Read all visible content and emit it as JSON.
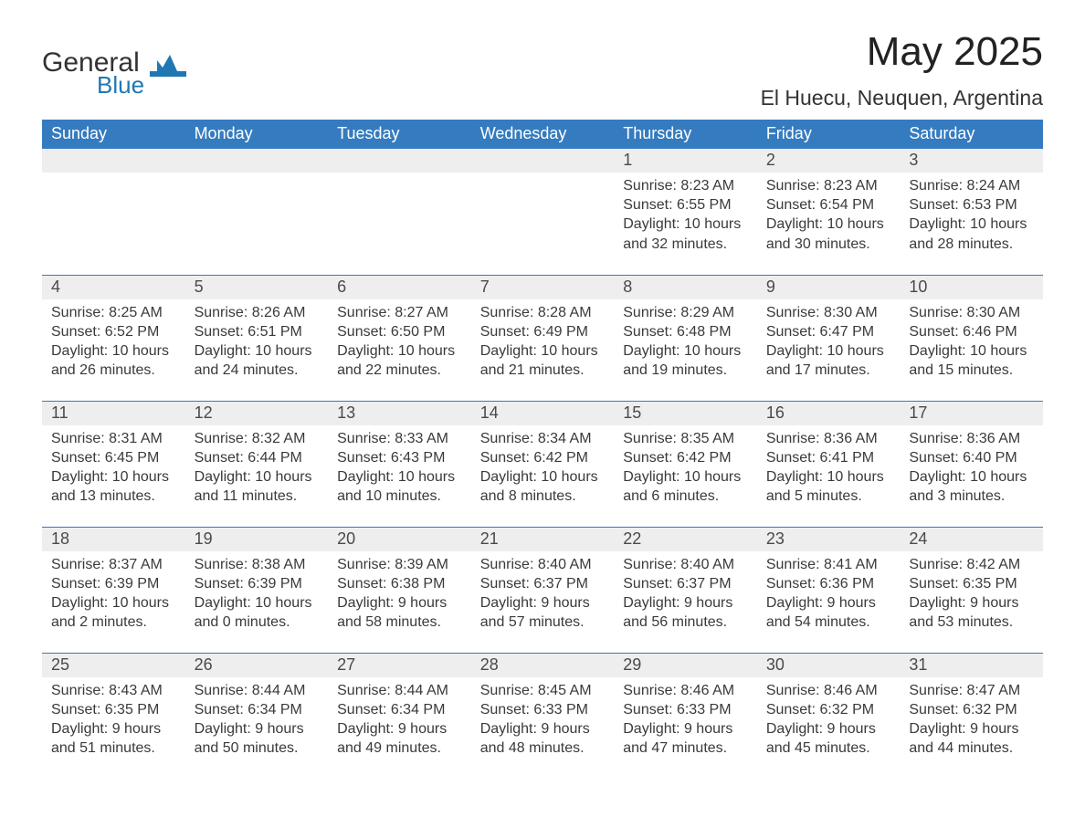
{
  "brand": {
    "word1": "General",
    "word2": "Blue",
    "accent": "#1f77b4"
  },
  "title": "May 2025",
  "location": "El Huecu, Neuquen, Argentina",
  "weekday_labels": [
    "Sunday",
    "Monday",
    "Tuesday",
    "Wednesday",
    "Thursday",
    "Friday",
    "Saturday"
  ],
  "colors": {
    "header_bg": "#357bbf",
    "header_text": "#ffffff",
    "daynum_bg": "#eeeeee",
    "row_border": "#357bbf",
    "body_text": "#3a3a3a"
  },
  "weeks": [
    [
      null,
      null,
      null,
      null,
      {
        "n": "1",
        "sunrise": "8:23 AM",
        "sunset": "6:55 PM",
        "dl": "10 hours and 32 minutes."
      },
      {
        "n": "2",
        "sunrise": "8:23 AM",
        "sunset": "6:54 PM",
        "dl": "10 hours and 30 minutes."
      },
      {
        "n": "3",
        "sunrise": "8:24 AM",
        "sunset": "6:53 PM",
        "dl": "10 hours and 28 minutes."
      }
    ],
    [
      {
        "n": "4",
        "sunrise": "8:25 AM",
        "sunset": "6:52 PM",
        "dl": "10 hours and 26 minutes."
      },
      {
        "n": "5",
        "sunrise": "8:26 AM",
        "sunset": "6:51 PM",
        "dl": "10 hours and 24 minutes."
      },
      {
        "n": "6",
        "sunrise": "8:27 AM",
        "sunset": "6:50 PM",
        "dl": "10 hours and 22 minutes."
      },
      {
        "n": "7",
        "sunrise": "8:28 AM",
        "sunset": "6:49 PM",
        "dl": "10 hours and 21 minutes."
      },
      {
        "n": "8",
        "sunrise": "8:29 AM",
        "sunset": "6:48 PM",
        "dl": "10 hours and 19 minutes."
      },
      {
        "n": "9",
        "sunrise": "8:30 AM",
        "sunset": "6:47 PM",
        "dl": "10 hours and 17 minutes."
      },
      {
        "n": "10",
        "sunrise": "8:30 AM",
        "sunset": "6:46 PM",
        "dl": "10 hours and 15 minutes."
      }
    ],
    [
      {
        "n": "11",
        "sunrise": "8:31 AM",
        "sunset": "6:45 PM",
        "dl": "10 hours and 13 minutes."
      },
      {
        "n": "12",
        "sunrise": "8:32 AM",
        "sunset": "6:44 PM",
        "dl": "10 hours and 11 minutes."
      },
      {
        "n": "13",
        "sunrise": "8:33 AM",
        "sunset": "6:43 PM",
        "dl": "10 hours and 10 minutes."
      },
      {
        "n": "14",
        "sunrise": "8:34 AM",
        "sunset": "6:42 PM",
        "dl": "10 hours and 8 minutes."
      },
      {
        "n": "15",
        "sunrise": "8:35 AM",
        "sunset": "6:42 PM",
        "dl": "10 hours and 6 minutes."
      },
      {
        "n": "16",
        "sunrise": "8:36 AM",
        "sunset": "6:41 PM",
        "dl": "10 hours and 5 minutes."
      },
      {
        "n": "17",
        "sunrise": "8:36 AM",
        "sunset": "6:40 PM",
        "dl": "10 hours and 3 minutes."
      }
    ],
    [
      {
        "n": "18",
        "sunrise": "8:37 AM",
        "sunset": "6:39 PM",
        "dl": "10 hours and 2 minutes."
      },
      {
        "n": "19",
        "sunrise": "8:38 AM",
        "sunset": "6:39 PM",
        "dl": "10 hours and 0 minutes."
      },
      {
        "n": "20",
        "sunrise": "8:39 AM",
        "sunset": "6:38 PM",
        "dl": "9 hours and 58 minutes."
      },
      {
        "n": "21",
        "sunrise": "8:40 AM",
        "sunset": "6:37 PM",
        "dl": "9 hours and 57 minutes."
      },
      {
        "n": "22",
        "sunrise": "8:40 AM",
        "sunset": "6:37 PM",
        "dl": "9 hours and 56 minutes."
      },
      {
        "n": "23",
        "sunrise": "8:41 AM",
        "sunset": "6:36 PM",
        "dl": "9 hours and 54 minutes."
      },
      {
        "n": "24",
        "sunrise": "8:42 AM",
        "sunset": "6:35 PM",
        "dl": "9 hours and 53 minutes."
      }
    ],
    [
      {
        "n": "25",
        "sunrise": "8:43 AM",
        "sunset": "6:35 PM",
        "dl": "9 hours and 51 minutes."
      },
      {
        "n": "26",
        "sunrise": "8:44 AM",
        "sunset": "6:34 PM",
        "dl": "9 hours and 50 minutes."
      },
      {
        "n": "27",
        "sunrise": "8:44 AM",
        "sunset": "6:34 PM",
        "dl": "9 hours and 49 minutes."
      },
      {
        "n": "28",
        "sunrise": "8:45 AM",
        "sunset": "6:33 PM",
        "dl": "9 hours and 48 minutes."
      },
      {
        "n": "29",
        "sunrise": "8:46 AM",
        "sunset": "6:33 PM",
        "dl": "9 hours and 47 minutes."
      },
      {
        "n": "30",
        "sunrise": "8:46 AM",
        "sunset": "6:32 PM",
        "dl": "9 hours and 45 minutes."
      },
      {
        "n": "31",
        "sunrise": "8:47 AM",
        "sunset": "6:32 PM",
        "dl": "9 hours and 44 minutes."
      }
    ]
  ],
  "labels": {
    "sunrise": "Sunrise: ",
    "sunset": "Sunset: ",
    "daylight": "Daylight: "
  }
}
